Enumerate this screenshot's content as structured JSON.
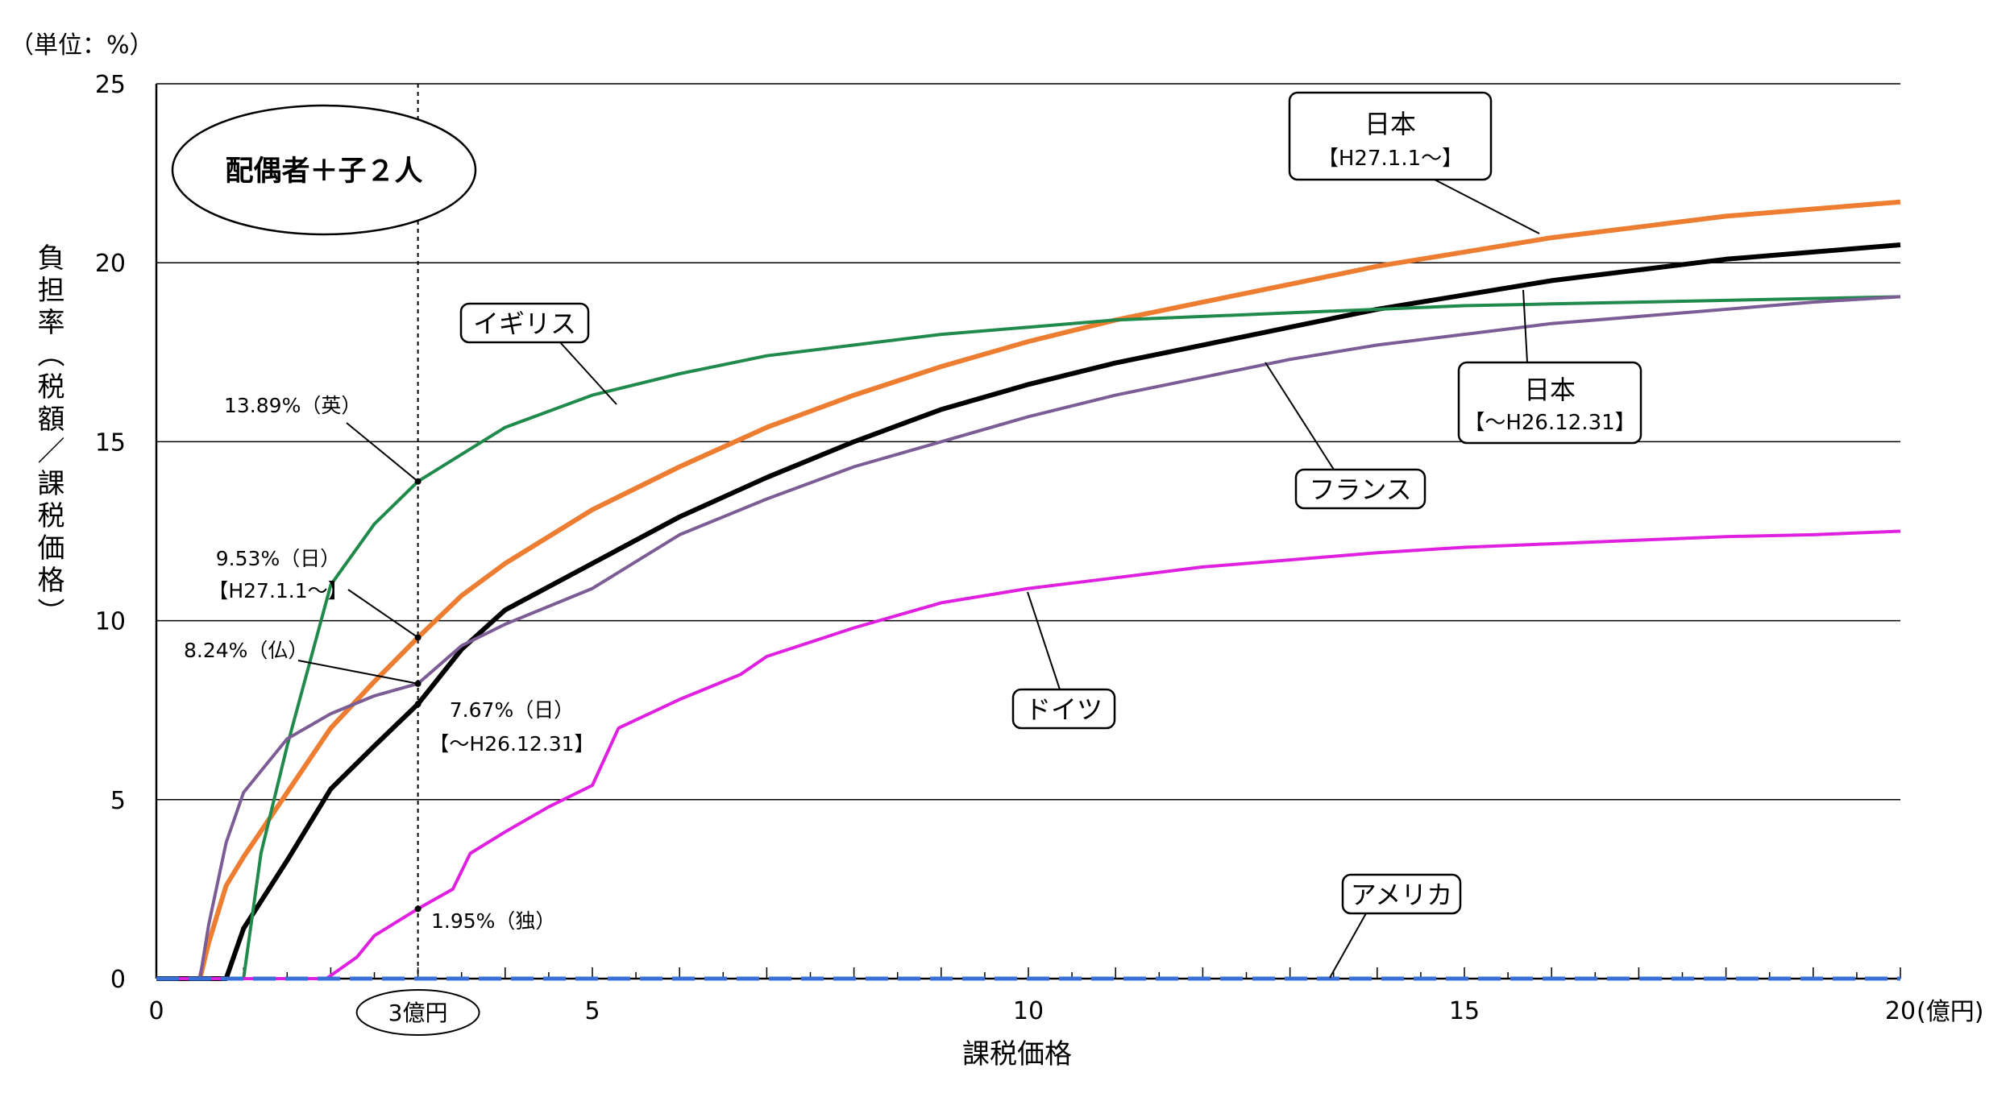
{
  "chart_data": {
    "type": "line",
    "title": "配偶者＋子２人",
    "unit_label": "（単位：%）",
    "xlabel": "課税価格",
    "xunit": "(億円)",
    "ylabel": "負担率（税額／課税価格）",
    "xlim": [
      0,
      20
    ],
    "ylim": [
      0,
      25
    ],
    "x_ticks": [
      0,
      5,
      10,
      15,
      20
    ],
    "y_ticks": [
      0,
      5,
      10,
      15,
      20,
      25
    ],
    "grid": true,
    "x_marker": {
      "x": 3,
      "label": "3億円"
    },
    "series": [
      {
        "name": "日本【H27.1.1～】",
        "color": "#ED7D31",
        "points": [
          [
            0,
            0
          ],
          [
            0.5,
            0
          ],
          [
            0.6,
            1.0
          ],
          [
            0.8,
            2.6
          ],
          [
            1,
            3.4
          ],
          [
            1.5,
            5.2
          ],
          [
            2,
            7.0
          ],
          [
            2.5,
            8.3
          ],
          [
            3,
            9.53
          ],
          [
            3.5,
            10.7
          ],
          [
            4,
            11.6
          ],
          [
            5,
            13.1
          ],
          [
            6,
            14.3
          ],
          [
            7,
            15.4
          ],
          [
            8,
            16.3
          ],
          [
            9,
            17.1
          ],
          [
            10,
            17.8
          ],
          [
            11,
            18.4
          ],
          [
            12,
            18.9
          ],
          [
            13,
            19.4
          ],
          [
            14,
            19.9
          ],
          [
            15,
            20.3
          ],
          [
            16,
            20.7
          ],
          [
            17,
            21.0
          ],
          [
            18,
            21.3
          ],
          [
            19,
            21.5
          ],
          [
            20,
            21.7
          ]
        ]
      },
      {
        "name": "日本【～H26.12.31】",
        "color": "#000000",
        "points": [
          [
            0,
            0
          ],
          [
            0.8,
            0
          ],
          [
            1,
            1.4
          ],
          [
            1.5,
            3.3
          ],
          [
            2,
            5.3
          ],
          [
            2.5,
            6.5
          ],
          [
            3,
            7.67
          ],
          [
            3.5,
            9.2
          ],
          [
            4,
            10.3
          ],
          [
            5,
            11.6
          ],
          [
            6,
            12.9
          ],
          [
            7,
            14.0
          ],
          [
            8,
            15.0
          ],
          [
            9,
            15.9
          ],
          [
            10,
            16.6
          ],
          [
            11,
            17.2
          ],
          [
            12,
            17.7
          ],
          [
            13,
            18.2
          ],
          [
            14,
            18.7
          ],
          [
            15,
            19.1
          ],
          [
            16,
            19.5
          ],
          [
            17,
            19.8
          ],
          [
            18,
            20.1
          ],
          [
            19,
            20.3
          ],
          [
            20,
            20.5
          ]
        ]
      },
      {
        "name": "イギリス",
        "color": "#1F8A4C",
        "points": [
          [
            0,
            0
          ],
          [
            1,
            0
          ],
          [
            1.2,
            3.5
          ],
          [
            1.5,
            6.5
          ],
          [
            2,
            11.0
          ],
          [
            2.5,
            12.7
          ],
          [
            3,
            13.89
          ],
          [
            4,
            15.4
          ],
          [
            5,
            16.3
          ],
          [
            6,
            16.9
          ],
          [
            7,
            17.4
          ],
          [
            8,
            17.7
          ],
          [
            9,
            18.0
          ],
          [
            10,
            18.2
          ],
          [
            11,
            18.4
          ],
          [
            12,
            18.5
          ],
          [
            13,
            18.6
          ],
          [
            14,
            18.7
          ],
          [
            15,
            18.8
          ],
          [
            16,
            18.85
          ],
          [
            17,
            18.9
          ],
          [
            18,
            18.95
          ],
          [
            19,
            19.0
          ],
          [
            20,
            19.05
          ]
        ]
      },
      {
        "name": "フランス",
        "color": "#7B5C94",
        "points": [
          [
            0,
            0
          ],
          [
            0.5,
            0
          ],
          [
            0.6,
            1.5
          ],
          [
            0.8,
            3.8
          ],
          [
            1,
            5.2
          ],
          [
            1.5,
            6.7
          ],
          [
            2,
            7.4
          ],
          [
            2.5,
            7.9
          ],
          [
            3,
            8.24
          ],
          [
            3.5,
            9.3
          ],
          [
            4,
            9.9
          ],
          [
            5,
            10.9
          ],
          [
            6,
            12.4
          ],
          [
            7,
            13.4
          ],
          [
            8,
            14.3
          ],
          [
            9,
            15.0
          ],
          [
            10,
            15.7
          ],
          [
            11,
            16.3
          ],
          [
            12,
            16.8
          ],
          [
            13,
            17.3
          ],
          [
            14,
            17.7
          ],
          [
            15,
            18.0
          ],
          [
            16,
            18.3
          ],
          [
            17,
            18.5
          ],
          [
            18,
            18.7
          ],
          [
            19,
            18.9
          ],
          [
            20,
            19.05
          ]
        ]
      },
      {
        "name": "ドイツ",
        "color": "#E020E0",
        "points": [
          [
            0,
            0
          ],
          [
            1.95,
            0
          ],
          [
            2.3,
            0.6
          ],
          [
            2.5,
            1.2
          ],
          [
            3,
            1.95
          ],
          [
            3.4,
            2.5
          ],
          [
            3.6,
            3.5
          ],
          [
            4,
            4.1
          ],
          [
            4.5,
            4.8
          ],
          [
            5,
            5.4
          ],
          [
            5.3,
            7.0
          ],
          [
            6,
            7.8
          ],
          [
            6.7,
            8.5
          ],
          [
            7,
            9.0
          ],
          [
            8,
            9.8
          ],
          [
            9,
            10.5
          ],
          [
            10,
            10.9
          ],
          [
            11,
            11.2
          ],
          [
            12,
            11.5
          ],
          [
            13,
            11.7
          ],
          [
            14,
            11.9
          ],
          [
            15,
            12.05
          ],
          [
            16,
            12.15
          ],
          [
            17,
            12.25
          ],
          [
            18,
            12.35
          ],
          [
            19,
            12.4
          ],
          [
            20,
            12.5
          ]
        ]
      },
      {
        "name": "アメリカ",
        "color": "#3A6FD8",
        "dashed": true,
        "points": [
          [
            0,
            0
          ],
          [
            20,
            0
          ]
        ]
      }
    ],
    "labels": [
      {
        "id": "jp-new",
        "lines": [
          "日本",
          "【H27.1.1～】"
        ]
      },
      {
        "id": "jp-old",
        "lines": [
          "日本",
          "【～H26.12.31】"
        ]
      },
      {
        "id": "uk",
        "lines": [
          "イギリス"
        ]
      },
      {
        "id": "fr",
        "lines": [
          "フランス"
        ]
      },
      {
        "id": "de",
        "lines": [
          "ドイツ"
        ]
      },
      {
        "id": "us",
        "lines": [
          "アメリカ"
        ]
      }
    ],
    "annotations": [
      {
        "id": "uk",
        "lines": [
          "13.89%（英）"
        ],
        "x": 3,
        "y": 13.89
      },
      {
        "id": "jp-new",
        "lines": [
          "9.53%（日）",
          "【H27.1.1～】"
        ],
        "x": 3,
        "y": 9.53
      },
      {
        "id": "fr",
        "lines": [
          "8.24%（仏）"
        ],
        "x": 3,
        "y": 8.24
      },
      {
        "id": "jp-old",
        "lines": [
          "7.67%（日）",
          "【～H26.12.31】"
        ],
        "x": 3,
        "y": 7.67
      },
      {
        "id": "de",
        "lines": [
          "1.95%（独）"
        ],
        "x": 3,
        "y": 1.95
      }
    ]
  }
}
